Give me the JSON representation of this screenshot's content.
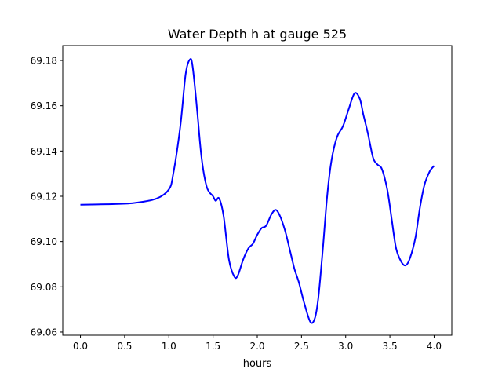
{
  "chart_data": {
    "type": "line",
    "title": "Water Depth h at gauge 525",
    "xlabel": "hours",
    "ylabel": "",
    "xlim": [
      -0.2,
      4.2
    ],
    "ylim": [
      69.0586,
      69.1866
    ],
    "xticks": [
      0.0,
      0.5,
      1.0,
      1.5,
      2.0,
      2.5,
      3.0,
      3.5,
      4.0
    ],
    "xtick_labels": [
      "0.0",
      "0.5",
      "1.0",
      "1.5",
      "2.0",
      "2.5",
      "3.0",
      "3.5",
      "4.0"
    ],
    "yticks": [
      69.06,
      69.08,
      69.1,
      69.12,
      69.14,
      69.16,
      69.18
    ],
    "ytick_labels": [
      "69.06",
      "69.08",
      "69.10",
      "69.12",
      "69.14",
      "69.16",
      "69.18"
    ],
    "grid": false,
    "series": [
      {
        "name": "h",
        "color": "#0000ff",
        "x": [
          0,
          0.3,
          0.6,
          0.86,
          1.0,
          1.05,
          1.13,
          1.19,
          1.24,
          1.27,
          1.32,
          1.37,
          1.43,
          1.5,
          1.53,
          1.57,
          1.62,
          1.68,
          1.74,
          1.78,
          1.84,
          1.9,
          1.95,
          2.0,
          2.05,
          2.1,
          2.16,
          2.21,
          2.26,
          2.32,
          2.37,
          2.42,
          2.47,
          2.53,
          2.6,
          2.65,
          2.69,
          2.74,
          2.79,
          2.84,
          2.9,
          2.97,
          3.03,
          3.1,
          3.16,
          3.2,
          3.25,
          3.31,
          3.36,
          3.41,
          3.47,
          3.52,
          3.57,
          3.63,
          3.68,
          3.73,
          3.79,
          3.84,
          3.89,
          3.95,
          4.0
        ],
        "y": [
          69.1163,
          69.1165,
          69.117,
          69.119,
          69.123,
          69.13,
          69.151,
          69.174,
          69.1805,
          69.177,
          69.158,
          69.137,
          69.124,
          69.12,
          69.118,
          69.119,
          69.111,
          69.092,
          69.0845,
          69.085,
          69.092,
          69.097,
          69.099,
          69.103,
          69.106,
          69.107,
          69.112,
          69.114,
          69.111,
          69.104,
          69.096,
          69.088,
          69.082,
          69.073,
          69.0645,
          69.066,
          69.075,
          69.096,
          69.12,
          69.136,
          69.146,
          69.151,
          69.158,
          69.1655,
          69.163,
          69.156,
          69.148,
          69.137,
          69.134,
          69.132,
          69.123,
          69.11,
          69.097,
          69.091,
          69.0895,
          69.093,
          69.102,
          69.115,
          69.125,
          69.131,
          69.1335
        ]
      }
    ]
  }
}
